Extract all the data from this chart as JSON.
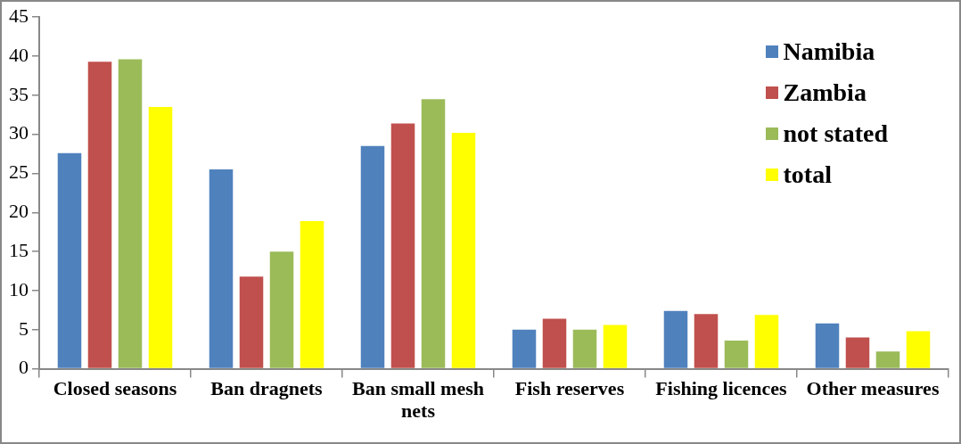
{
  "chart_data": {
    "type": "bar",
    "categories": [
      "Closed seasons",
      "Ban dragnets",
      "Ban small mesh nets",
      "Fish reserves",
      "Fishing licences",
      "Other measures"
    ],
    "series": [
      {
        "name": "Namibia",
        "color": "#4f81bd",
        "values": [
          27.6,
          25.5,
          28.5,
          5.0,
          7.4,
          5.8
        ]
      },
      {
        "name": "Zambia",
        "color": "#c0504d",
        "values": [
          39.3,
          11.8,
          31.4,
          6.4,
          7.0,
          4.0
        ]
      },
      {
        "name": "not stated",
        "color": "#9bbb59",
        "values": [
          39.6,
          15.0,
          34.5,
          5.0,
          3.6,
          2.2
        ]
      },
      {
        "name": "total",
        "color": "#ffff00",
        "values": [
          33.5,
          18.9,
          30.2,
          5.6,
          6.9,
          4.8
        ]
      }
    ],
    "ylim": [
      0,
      45
    ],
    "yticks": [
      0,
      5,
      10,
      15,
      20,
      25,
      30,
      35,
      40,
      45
    ],
    "grid": false,
    "legend": "top right"
  }
}
